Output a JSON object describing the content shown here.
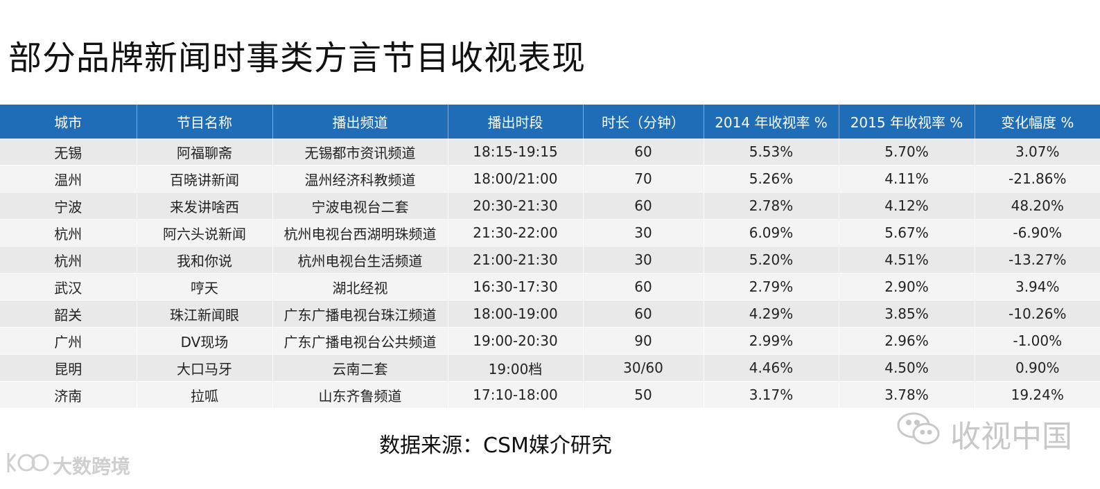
{
  "title": "部分品牌新闻时事类方言节目收视表现",
  "table": {
    "headers": [
      "城市",
      "节目名称",
      "播出频道",
      "播出时段",
      "时长（分钟）",
      "2014 年收视率 %",
      "2015 年收视率 %",
      "变化幅度 %"
    ],
    "rows": [
      [
        "无锡",
        "阿福聊斋",
        "无锡都市资讯频道",
        "18:15-19:15",
        "60",
        "5.53%",
        "5.70%",
        "3.07%"
      ],
      [
        "温州",
        "百晓讲新闻",
        "温州经济科教频道",
        "18:00/21:00",
        "70",
        "5.26%",
        "4.11%",
        "-21.86%"
      ],
      [
        "宁波",
        "来发讲啥西",
        "宁波电视台二套",
        "20:30-21:30",
        "60",
        "2.78%",
        "4.12%",
        "48.20%"
      ],
      [
        "杭州",
        "阿六头说新闻",
        "杭州电视台西湖明珠频道",
        "21:30-22:00",
        "30",
        "6.09%",
        "5.67%",
        "-6.90%"
      ],
      [
        "杭州",
        "我和你说",
        "杭州电视台生活频道",
        "21:00-21:30",
        "30",
        "5.20%",
        "4.51%",
        "-13.27%"
      ],
      [
        "武汉",
        "哼天",
        "湖北经视",
        "16:30-17:30",
        "60",
        "2.79%",
        "2.90%",
        "3.94%"
      ],
      [
        "韶关",
        "珠江新闻眼",
        "广东广播电视台珠江频道",
        "18:00-19:00",
        "60",
        "4.29%",
        "3.85%",
        "-10.26%"
      ],
      [
        "广州",
        "DV现场",
        "广东广播电视台公共频道",
        "19:00-20:30",
        "90",
        "2.99%",
        "2.96%",
        "-1.00%"
      ],
      [
        "昆明",
        "大口马牙",
        "云南二套",
        "19:00档",
        "30/60",
        "4.46%",
        "4.50%",
        "0.90%"
      ],
      [
        "济南",
        "拉呱",
        "山东齐鲁频道",
        "17:10-18:00",
        "50",
        "3.17%",
        "3.78%",
        "19.24%"
      ]
    ]
  },
  "source": "数据来源：CSM媒介研究",
  "watermarks": {
    "right_text": "收视中国",
    "right_icon": "wechat-icon",
    "left_text": "大数跨境",
    "left_icon": "logo-icon"
  },
  "colors": {
    "header_bg": "#1f6db6",
    "row_odd": "#e9e9e9",
    "row_even": "#f4f4f4"
  }
}
